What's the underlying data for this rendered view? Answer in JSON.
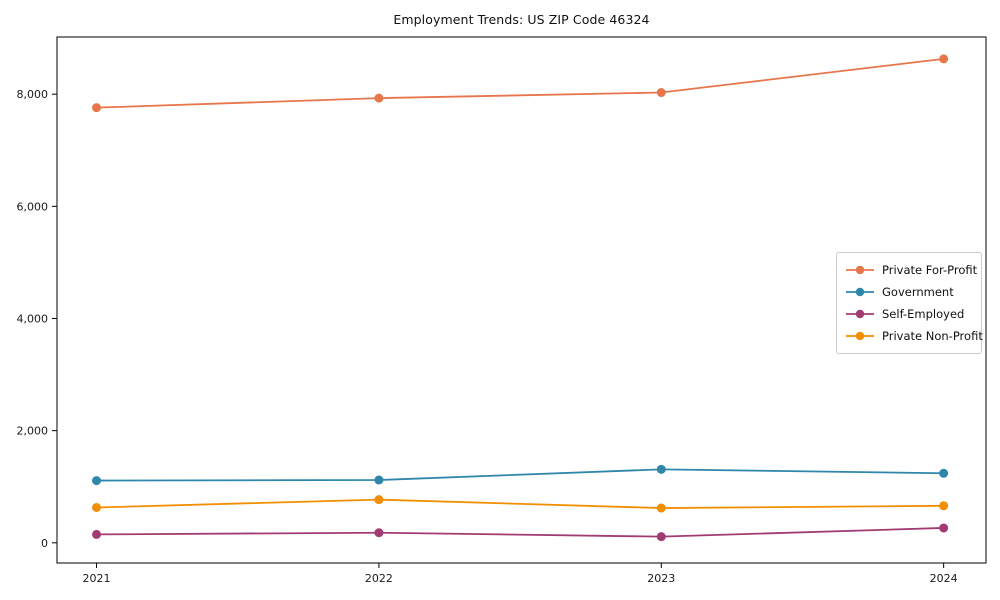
{
  "title": "Employment Trends: US ZIP Code 46324",
  "chart_data": {
    "type": "line",
    "title": "Employment Trends: US ZIP Code 46324",
    "x": [
      2021,
      2022,
      2023,
      2024
    ],
    "x_tick_labels": [
      "2021",
      "2022",
      "2023",
      "2024"
    ],
    "y_ticks": [
      0,
      2000,
      4000,
      6000,
      8000
    ],
    "y_tick_labels": [
      "0",
      "2,000",
      "4,000",
      "6,000",
      "8,000"
    ],
    "xlim": [
      2020.86,
      2024.15
    ],
    "ylim": [
      -360,
      9020
    ],
    "xlabel": "",
    "ylabel": "",
    "grid": false,
    "legend_position": "center-right",
    "series": [
      {
        "name": "Private For-Profit",
        "color": "#E8764B",
        "values": [
          7760,
          7930,
          8030,
          8630
        ]
      },
      {
        "name": "Government",
        "color": "#2E86AB",
        "values": [
          1110,
          1120,
          1310,
          1240
        ]
      },
      {
        "name": "Self-Employed",
        "color": "#A23B72",
        "values": [
          150,
          180,
          110,
          265
        ]
      },
      {
        "name": "Private Non-Profit",
        "color": "#F18F01",
        "values": [
          630,
          770,
          620,
          660
        ]
      }
    ]
  }
}
